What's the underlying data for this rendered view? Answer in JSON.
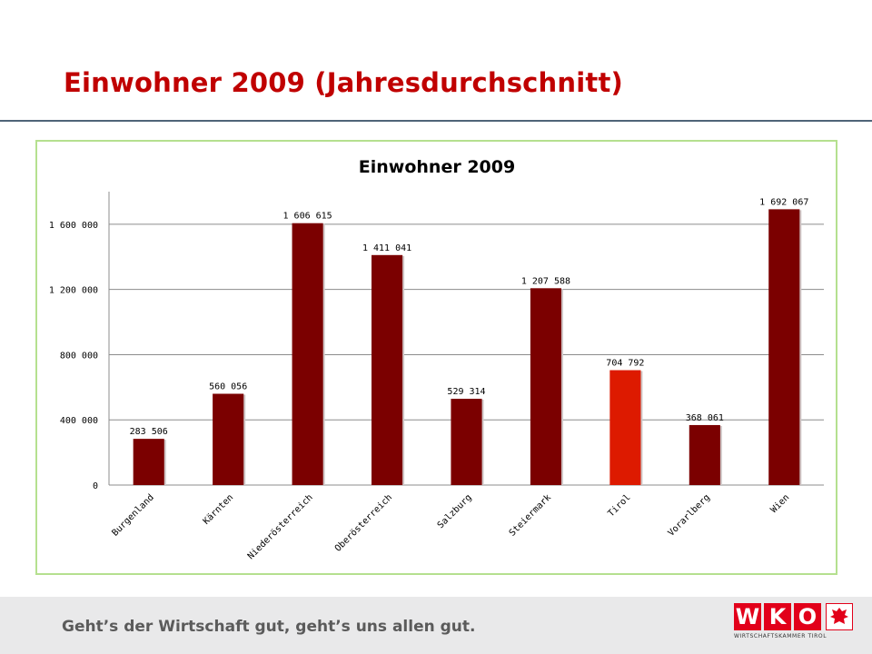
{
  "slide": {
    "title": "Einwohner 2009 (Jahresdurchschnitt)"
  },
  "footer": {
    "tagline": "Geht’s der Wirtschaft gut, geht’s uns allen gut.",
    "logo_letters": [
      "W",
      "K",
      "O"
    ],
    "logo_subtitle": "WIRTSCHAFTSKAMMER TIROL"
  },
  "colors": {
    "title": "#c00000",
    "bar_default": "#7b0000",
    "bar_highlight": "#dd1a00",
    "chart_border": "#b5e08f",
    "gridline": "#8c8c8c"
  },
  "chart_data": {
    "type": "bar",
    "title": "Einwohner 2009",
    "xlabel": "",
    "ylabel": "",
    "categories": [
      "Burgenland",
      "Kärnten",
      "Niederösterreich",
      "Oberösterreich",
      "Salzburg",
      "Steiermark",
      "Tirol",
      "Vorarlberg",
      "Wien"
    ],
    "values": [
      283506,
      560056,
      1606615,
      1411041,
      529314,
      1207588,
      704792,
      368061,
      1692067
    ],
    "value_labels": [
      "283 506",
      "560 056",
      "1 606 615",
      "1 411 041",
      "529 314",
      "1 207 588",
      "704 792",
      "368 061",
      "1 692 067"
    ],
    "highlight_category": "Tirol",
    "ylim": [
      0,
      1800000
    ],
    "yticks": [
      0,
      400000,
      800000,
      1200000,
      1600000
    ],
    "ytick_labels": [
      "0",
      "400 000",
      "800 000",
      "1 200 000",
      "1 600 000"
    ],
    "grid": true,
    "legend": "none"
  }
}
